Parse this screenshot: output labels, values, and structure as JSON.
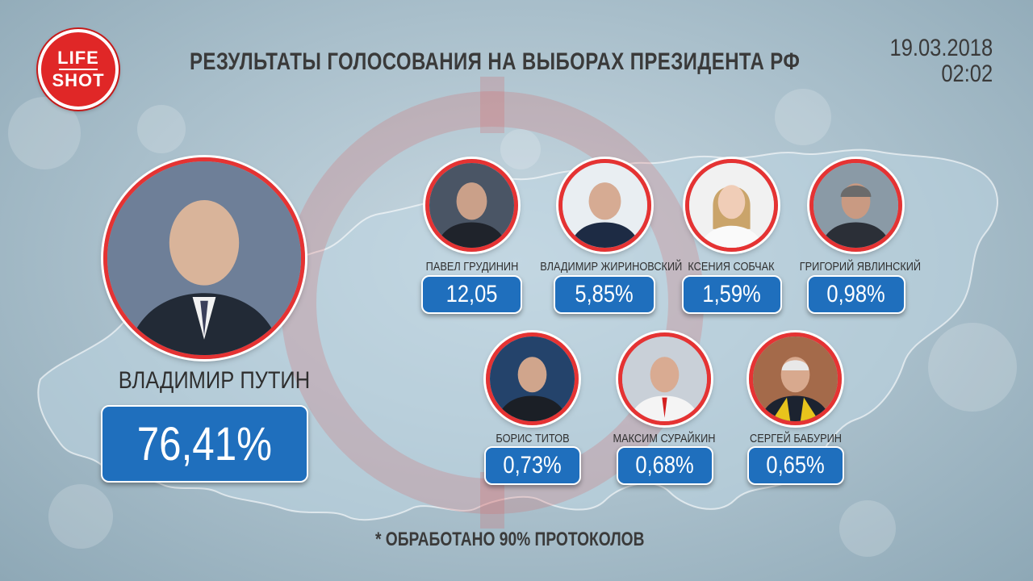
{
  "logo": {
    "line1": "LIFE",
    "line2": "SHOT"
  },
  "title": "РЕЗУЛЬТАТЫ ГОЛОСОВАНИЯ НА ВЫБОРАХ ПРЕЗИДЕНТА РФ",
  "date": "19.03.2018",
  "time": "02:02",
  "leader": {
    "name": "ВЛАДИМИР ПУТИН",
    "result": "76,41%"
  },
  "candidates": [
    {
      "name": "ПАВЕЛ ГРУДИНИН",
      "result": "12,05"
    },
    {
      "name": "ВЛАДИМИР ЖИРИНОВСКИЙ",
      "result": "5,85%"
    },
    {
      "name": "КСЕНИЯ СОБЧАК",
      "result": "1,59%"
    },
    {
      "name": "ГРИГОРИЙ ЯВЛИНСКИЙ",
      "result": "0,98%"
    },
    {
      "name": "БОРИС ТИТОВ",
      "result": "0,73%"
    },
    {
      "name": "МАКСИМ СУРАЙКИН",
      "result": "0,68%"
    },
    {
      "name": "СЕРГЕЙ БАБУРИН",
      "result": "0,65%"
    }
  ],
  "footnote": "* ОБРАБОТАНО 90% ПРОТОКОЛОВ",
  "colors": {
    "badge": "#1f6fbd",
    "ring": "#e53333",
    "text": "#3a3a3a"
  }
}
